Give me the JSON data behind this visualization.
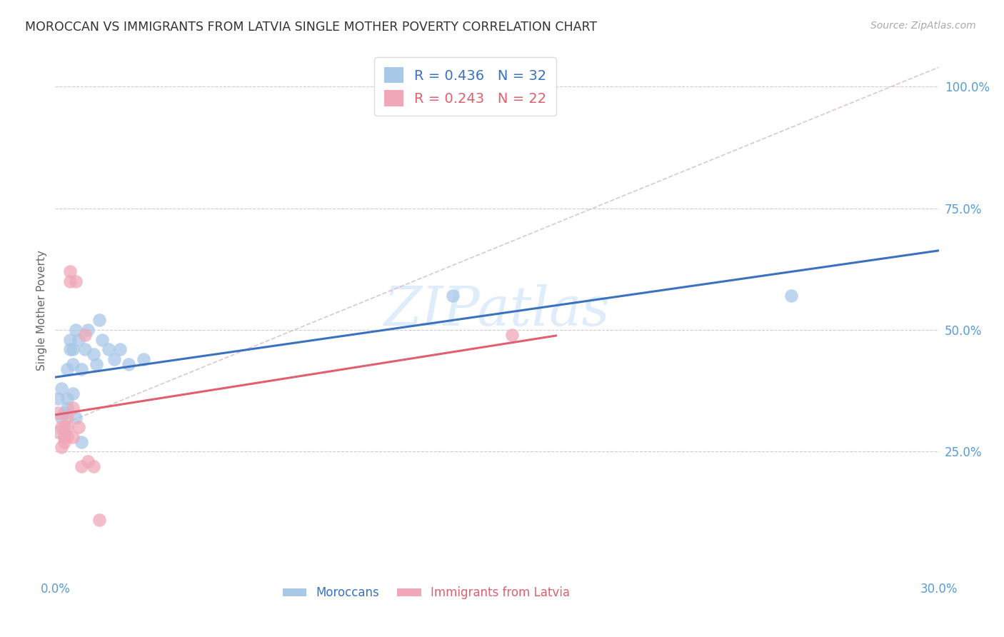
{
  "title": "MOROCCAN VS IMMIGRANTS FROM LATVIA SINGLE MOTHER POVERTY CORRELATION CHART",
  "source": "Source: ZipAtlas.com",
  "ylabel_label": "Single Mother Poverty",
  "x_min": 0.0,
  "x_max": 0.3,
  "y_min": 0.0,
  "y_max": 1.08,
  "x_ticks": [
    0.0,
    0.05,
    0.1,
    0.15,
    0.2,
    0.25,
    0.3
  ],
  "x_tick_labels": [
    "0.0%",
    "",
    "",
    "",
    "",
    "",
    "30.0%"
  ],
  "y_ticks": [
    0.0,
    0.25,
    0.5,
    0.75,
    1.0
  ],
  "y_tick_labels_right": [
    "",
    "25.0%",
    "50.0%",
    "75.0%",
    "100.0%"
  ],
  "blue_R": "R = 0.436",
  "blue_N": "N = 32",
  "pink_R": "R = 0.243",
  "pink_N": "N = 22",
  "moroccans_x": [
    0.001,
    0.002,
    0.002,
    0.003,
    0.003,
    0.003,
    0.004,
    0.004,
    0.004,
    0.005,
    0.005,
    0.006,
    0.006,
    0.006,
    0.007,
    0.007,
    0.008,
    0.009,
    0.009,
    0.01,
    0.011,
    0.013,
    0.014,
    0.015,
    0.016,
    0.018,
    0.02,
    0.022,
    0.025,
    0.03,
    0.135,
    0.25
  ],
  "moroccans_y": [
    0.36,
    0.38,
    0.32,
    0.33,
    0.29,
    0.28,
    0.34,
    0.42,
    0.36,
    0.48,
    0.46,
    0.43,
    0.46,
    0.37,
    0.5,
    0.32,
    0.48,
    0.42,
    0.27,
    0.46,
    0.5,
    0.45,
    0.43,
    0.52,
    0.48,
    0.46,
    0.44,
    0.46,
    0.43,
    0.44,
    0.57,
    0.57
  ],
  "latvia_x": [
    0.001,
    0.001,
    0.002,
    0.002,
    0.003,
    0.003,
    0.003,
    0.004,
    0.004,
    0.004,
    0.005,
    0.005,
    0.006,
    0.006,
    0.007,
    0.008,
    0.009,
    0.01,
    0.011,
    0.013,
    0.015,
    0.155
  ],
  "latvia_y": [
    0.33,
    0.29,
    0.26,
    0.3,
    0.28,
    0.3,
    0.27,
    0.3,
    0.32,
    0.28,
    0.62,
    0.6,
    0.28,
    0.34,
    0.6,
    0.3,
    0.22,
    0.49,
    0.23,
    0.22,
    0.11,
    0.49
  ],
  "blue_scatter_color": "#a8c8e8",
  "pink_scatter_color": "#f0a8b8",
  "blue_line_color": "#3a72c0",
  "pink_line_color": "#e06070",
  "diag_color": "#d8b8c0",
  "text_color": "#5b9bd5",
  "grid_color": "#cccccc",
  "bg_color": "#ffffff",
  "watermark_color": "#c5ddf5"
}
